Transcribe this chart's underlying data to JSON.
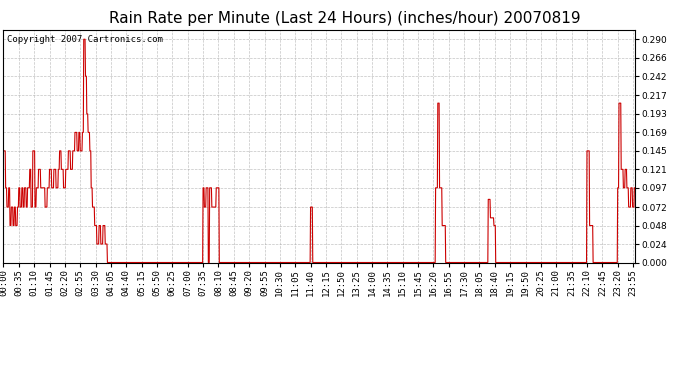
{
  "title": "Rain Rate per Minute (Last 24 Hours) (inches/hour) 20070819",
  "copyright_text": "Copyright 2007 Cartronics.com",
  "line_color": "#cc0000",
  "background_color": "#ffffff",
  "grid_color": "#aaaaaa",
  "ylim": [
    0.0,
    0.302
  ],
  "yticks": [
    0.0,
    0.024,
    0.048,
    0.072,
    0.097,
    0.121,
    0.145,
    0.169,
    0.193,
    0.217,
    0.242,
    0.266,
    0.29
  ],
  "title_fontsize": 11,
  "tick_fontsize": 6.5,
  "x_tick_step": 35,
  "n_minutes": 1440
}
